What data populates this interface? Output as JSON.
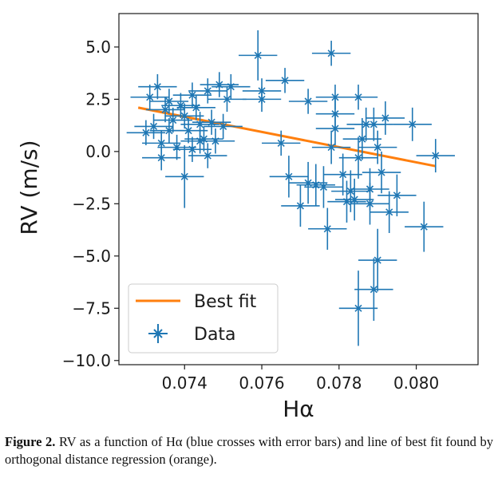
{
  "chart_data": {
    "type": "scatter",
    "xlabel": "Hα",
    "ylabel": "RV (m/s)",
    "xlim": [
      0.0723,
      0.0816
    ],
    "ylim": [
      -10.2,
      6.6
    ],
    "xticks": [
      0.074,
      0.076,
      0.078,
      0.08
    ],
    "xtick_labels": [
      "0.074",
      "0.076",
      "0.078",
      "0.080"
    ],
    "yticks": [
      5.0,
      2.5,
      0.0,
      -2.5,
      -5.0,
      -7.5,
      -10.0
    ],
    "ytick_labels": [
      "5.0",
      "2.5",
      "0.0",
      "−2.5",
      "−5.0",
      "−7.5",
      "−10.0"
    ],
    "grid": false,
    "legend": {
      "placement": "lower-left",
      "entries": [
        {
          "label": "Best fit",
          "color": "#ff7f0e",
          "marker": "line"
        },
        {
          "label": "Data",
          "color": "#1f77b4",
          "marker": "plus-errorbar"
        }
      ]
    },
    "series": [
      {
        "name": "Data",
        "color": "#1f77b4",
        "points": [
          [
            0.0731,
            2.6,
            0.0005,
            0.6
          ],
          [
            0.0733,
            3.1,
            0.0005,
            0.6
          ],
          [
            0.0735,
            2.0,
            0.0005,
            0.6
          ],
          [
            0.0737,
            1.5,
            0.0005,
            0.6
          ],
          [
            0.0739,
            2.2,
            0.0005,
            0.6
          ],
          [
            0.0741,
            1.0,
            0.0005,
            0.6
          ],
          [
            0.0743,
            2.1,
            0.0005,
            0.6
          ],
          [
            0.0745,
            0.6,
            0.0005,
            0.6
          ],
          [
            0.0747,
            1.4,
            0.0005,
            0.6
          ],
          [
            0.0749,
            3.2,
            0.0005,
            0.6
          ],
          [
            0.0751,
            2.5,
            0.0005,
            0.6
          ],
          [
            0.0732,
            1.2,
            0.0005,
            0.6
          ],
          [
            0.0734,
            0.4,
            0.0005,
            0.6
          ],
          [
            0.0736,
            1.0,
            0.0005,
            0.6
          ],
          [
            0.0738,
            0.2,
            0.0005,
            0.6
          ],
          [
            0.074,
            1.7,
            0.0005,
            0.6
          ],
          [
            0.0742,
            0.1,
            0.0005,
            0.6
          ],
          [
            0.0744,
            1.3,
            0.0005,
            0.6
          ],
          [
            0.0746,
            -0.2,
            0.0005,
            0.6
          ],
          [
            0.0748,
            0.5,
            0.0005,
            0.6
          ],
          [
            0.075,
            1.2,
            0.0005,
            0.6
          ],
          [
            0.073,
            0.9,
            0.0005,
            0.6
          ],
          [
            0.0736,
            2.4,
            0.0005,
            0.6
          ],
          [
            0.0742,
            2.7,
            0.0005,
            0.6
          ],
          [
            0.0746,
            2.9,
            0.0005,
            0.6
          ],
          [
            0.0752,
            3.1,
            0.0005,
            0.6
          ],
          [
            0.0734,
            -0.3,
            0.0005,
            0.6
          ],
          [
            0.0744,
            0.5,
            0.0005,
            0.6
          ],
          [
            0.074,
            -1.2,
            0.0005,
            1.5
          ],
          [
            0.0759,
            4.6,
            0.0005,
            1.2
          ],
          [
            0.076,
            2.5,
            0.0005,
            0.6
          ],
          [
            0.076,
            2.9,
            0.0005,
            0.6
          ],
          [
            0.0766,
            3.4,
            0.0005,
            0.6
          ],
          [
            0.0772,
            2.4,
            0.0005,
            0.6
          ],
          [
            0.0778,
            4.7,
            0.0005,
            0.6
          ],
          [
            0.0779,
            2.6,
            0.0005,
            0.6
          ],
          [
            0.0785,
            2.6,
            0.0005,
            0.6
          ],
          [
            0.0765,
            0.4,
            0.0005,
            0.6
          ],
          [
            0.0767,
            -1.2,
            0.0005,
            1.0
          ],
          [
            0.077,
            -2.6,
            0.0005,
            1.0
          ],
          [
            0.0772,
            -1.5,
            0.0005,
            1.0
          ],
          [
            0.0774,
            -1.6,
            0.0005,
            1.0
          ],
          [
            0.0776,
            -1.7,
            0.0005,
            1.0
          ],
          [
            0.0777,
            -3.7,
            0.0005,
            1.0
          ],
          [
            0.0778,
            0.2,
            0.0005,
            0.8
          ],
          [
            0.0779,
            1.1,
            0.0005,
            0.8
          ],
          [
            0.0779,
            1.8,
            0.0005,
            0.8
          ],
          [
            0.0781,
            -1.1,
            0.0005,
            1.0
          ],
          [
            0.0782,
            -2.4,
            0.0005,
            1.0
          ],
          [
            0.0784,
            -2.3,
            0.0005,
            1.0
          ],
          [
            0.0785,
            -0.3,
            0.0005,
            1.0
          ],
          [
            0.0786,
            0.6,
            0.0005,
            1.0
          ],
          [
            0.0787,
            1.3,
            0.0005,
            0.8
          ],
          [
            0.0788,
            -1.8,
            0.0005,
            1.0
          ],
          [
            0.0789,
            1.3,
            0.0005,
            0.8
          ],
          [
            0.079,
            0.2,
            0.0005,
            0.8
          ],
          [
            0.0791,
            -1.0,
            0.0005,
            1.0
          ],
          [
            0.0792,
            1.6,
            0.0005,
            0.8
          ],
          [
            0.0793,
            -2.9,
            0.0005,
            1.0
          ],
          [
            0.0795,
            -2.1,
            0.0005,
            1.0
          ],
          [
            0.0799,
            1.3,
            0.0005,
            0.8
          ],
          [
            0.0805,
            -0.2,
            0.0005,
            0.8
          ],
          [
            0.0788,
            -2.5,
            0.0005,
            1.0
          ],
          [
            0.0783,
            -1.9,
            0.0005,
            1.0
          ],
          [
            0.079,
            -5.2,
            0.0005,
            1.5
          ],
          [
            0.0789,
            -6.6,
            0.0005,
            1.5
          ],
          [
            0.0785,
            -7.5,
            0.0005,
            1.8
          ],
          [
            0.0802,
            -3.6,
            0.0005,
            1.2
          ]
        ]
      }
    ],
    "fit_line": {
      "name": "Best fit",
      "color": "#ff7f0e",
      "x": [
        0.0728,
        0.0805
      ],
      "y": [
        2.1,
        -0.7
      ]
    }
  },
  "caption": {
    "label": "Figure 2.",
    "text": " RV as a function of Hα (blue crosses with error bars) and line of best fit found by orthogonal distance regression (orange)."
  }
}
